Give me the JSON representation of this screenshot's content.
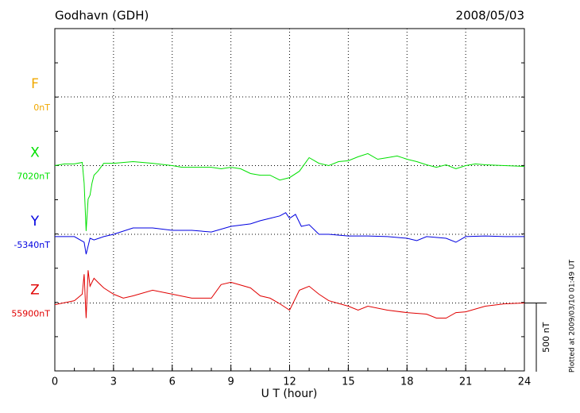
{
  "chart_data": {
    "type": "magnetogram",
    "title": "Godhavn (GDH)",
    "date": "2008/05/03",
    "xlabel": "U T (hour)",
    "note": "Plotted at 2009/03/10 01:49 UT",
    "xlim": [
      0,
      24
    ],
    "xticks": [
      0,
      3,
      6,
      9,
      12,
      15,
      18,
      21,
      24
    ],
    "grid": true,
    "scale_bar": {
      "value": 500,
      "label": "500 nT"
    },
    "series": [
      {
        "name": "F",
        "color": "#f0a800",
        "baseline": {
          "value": 0,
          "label": "0nT"
        }
      },
      {
        "name": "X",
        "color": "#00e000",
        "baseline": {
          "value": 7020,
          "label": "7020nT"
        },
        "x": [
          0,
          0.5,
          1,
          1.4,
          1.5,
          1.6,
          1.7,
          1.8,
          1.9,
          2,
          2.2,
          2.5,
          3,
          4,
          5,
          6,
          6.5,
          7,
          8,
          8.5,
          9,
          9.5,
          10,
          10.5,
          11,
          11.5,
          12,
          12.5,
          13,
          13.5,
          14,
          14.5,
          15,
          15.5,
          16,
          16.5,
          17,
          17.5,
          18,
          18.5,
          19,
          19.5,
          20,
          20.5,
          21,
          21.5,
          22,
          23,
          24
        ],
        "values": [
          7020,
          7032,
          7032,
          7043,
          6892,
          6544,
          6776,
          6805,
          6892,
          6950,
          6979,
          7037,
          7037,
          7049,
          7037,
          7020,
          7008,
          7008,
          7008,
          6997,
          7008,
          6997,
          6962,
          6950,
          6950,
          6915,
          6933,
          6979,
          7078,
          7037,
          7020,
          7049,
          7055,
          7084,
          7107,
          7066,
          7078,
          7090,
          7066,
          7049,
          7026,
          7008,
          7026,
          6997,
          7020,
          7032,
          7026,
          7020,
          7014
        ]
      },
      {
        "name": "Y",
        "color": "#0000e0",
        "baseline": {
          "value": -5340,
          "label": "-5340nT"
        },
        "x": [
          0,
          1,
          1.5,
          1.6,
          1.8,
          2,
          2.5,
          3,
          4,
          5,
          6,
          7,
          8,
          9,
          10,
          10.5,
          11,
          11.5,
          11.8,
          12,
          12.3,
          12.6,
          13,
          13.5,
          14,
          15,
          16,
          17,
          18,
          18.5,
          19,
          20,
          20.5,
          21,
          22,
          23,
          24
        ],
        "values": [
          -5357,
          -5357,
          -5398,
          -5485,
          -5369,
          -5381,
          -5357,
          -5340,
          -5294,
          -5294,
          -5311,
          -5311,
          -5323,
          -5282,
          -5264,
          -5241,
          -5224,
          -5206,
          -5183,
          -5224,
          -5195,
          -5282,
          -5270,
          -5340,
          -5340,
          -5352,
          -5352,
          -5357,
          -5369,
          -5386,
          -5357,
          -5369,
          -5398,
          -5357,
          -5352,
          -5357,
          -5357
        ]
      },
      {
        "name": "Z",
        "color": "#e00000",
        "baseline": {
          "value": 55900,
          "label": "55900nT"
        },
        "x": [
          0,
          1,
          1.4,
          1.5,
          1.6,
          1.7,
          1.8,
          2,
          2.2,
          2.5,
          3,
          3.5,
          4,
          5,
          6,
          7,
          8,
          8.5,
          9,
          10,
          10.5,
          11,
          11.5,
          12,
          12.5,
          13,
          13.5,
          14,
          15,
          15.5,
          16,
          17,
          18,
          19,
          19.5,
          20,
          20.5,
          21,
          22,
          23,
          24
        ],
        "values": [
          55888,
          55917,
          55964,
          56109,
          55790,
          56138,
          56022,
          56080,
          56051,
          56010,
          55964,
          55935,
          55952,
          55993,
          55964,
          55935,
          55935,
          56034,
          56051,
          56010,
          55952,
          55935,
          55894,
          55848,
          55993,
          56022,
          55964,
          55917,
          55877,
          55848,
          55877,
          55848,
          55830,
          55819,
          55790,
          55790,
          55830,
          55836,
          55877,
          55894,
          55900
        ]
      }
    ]
  }
}
